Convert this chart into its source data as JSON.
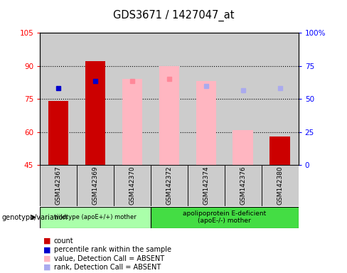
{
  "title": "GDS3671 / 1427047_at",
  "samples": [
    "GSM142367",
    "GSM142369",
    "GSM142370",
    "GSM142372",
    "GSM142374",
    "GSM142376",
    "GSM142380"
  ],
  "group1_count": 3,
  "group1_label": "wildtype (apoE+/+) mother",
  "group2_label": "apolipoprotein E-deficient\n(apoE-/-) mother",
  "group1_bg": "#aaffaa",
  "group2_bg": "#44dd44",
  "bar_bg": "#cccccc",
  "ylim_left": [
    45,
    105
  ],
  "ylim_right": [
    0,
    100
  ],
  "yticks_left": [
    45,
    60,
    75,
    90,
    105
  ],
  "ytick_labels_left": [
    "45",
    "60",
    "75",
    "90",
    "105"
  ],
  "yticks_right": [
    0,
    25,
    50,
    75,
    100
  ],
  "ytick_labels_right": [
    "0",
    "25",
    "50",
    "75",
    "100%"
  ],
  "red_bars": {
    "GSM142367": 74,
    "GSM142369": 92,
    "GSM142380": 58
  },
  "pink_bars": {
    "GSM142370": 84,
    "GSM142372": 90,
    "GSM142374": 83,
    "GSM142376": 61
  },
  "blue_squares": {
    "GSM142367": 80,
    "GSM142369": 83
  },
  "light_blue_squares": {
    "GSM142374": 81,
    "GSM142376": 79,
    "GSM142380": 80
  },
  "pink_squares": {
    "GSM142370": 83,
    "GSM142372": 84
  },
  "legend": [
    {
      "label": "count",
      "color": "#cc0000"
    },
    {
      "label": "percentile rank within the sample",
      "color": "#0000cc"
    },
    {
      "label": "value, Detection Call = ABSENT",
      "color": "#ffb6c1"
    },
    {
      "label": "rank, Detection Call = ABSENT",
      "color": "#aaaaee"
    }
  ]
}
